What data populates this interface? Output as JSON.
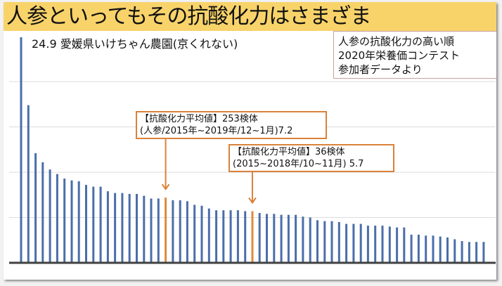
{
  "slide": {
    "title": "人参といってもその抗酸化力はさまざま",
    "top_bar_label": "24.9 愛媛県いけちゃん農園(京くれない)",
    "legend_box": {
      "lines": [
        "人参の抗酸化力の高い順",
        "2020年栄養価コンテスト",
        "参加者データより"
      ]
    },
    "callouts": [
      {
        "lines": [
          "【抗酸化力平均値】253検体",
          "(人参/2015年~2019年/12~1月)7.2"
        ],
        "bar_index": 20
      },
      {
        "lines": [
          "【抗酸化力平均値】36検体",
          "(2015~2018年/10~11月) 5.7"
        ],
        "bar_index": 32
      }
    ]
  },
  "colors": {
    "title_band": "#f8d36a",
    "bar": "#4a6ea9",
    "highlight_bar": "#e08a3e",
    "callout_border": "#d9823b",
    "gridline": "#dcdcdc",
    "axis": "#404040"
  },
  "chart_data": {
    "type": "bar",
    "title": "人参といってもその抗酸化力はさまざま",
    "xlabel": "",
    "ylabel": "",
    "ylim": [
      0,
      25
    ],
    "grid": true,
    "gridlines_at": [
      5,
      10,
      15,
      20
    ],
    "highlighted_indices": [
      20,
      32
    ],
    "values": [
      24.9,
      17.4,
      12.1,
      11.1,
      10.3,
      9.8,
      9.3,
      9.1,
      9.0,
      8.6,
      8.4,
      8.4,
      7.9,
      7.7,
      7.7,
      7.6,
      7.6,
      7.4,
      7.1,
      7.1,
      7.2,
      6.9,
      6.9,
      6.8,
      6.4,
      6.3,
      6.0,
      5.8,
      5.8,
      5.8,
      5.8,
      5.7,
      5.7,
      5.5,
      5.4,
      5.4,
      5.3,
      5.3,
      5.3,
      5.1,
      5.0,
      4.7,
      4.6,
      4.6,
      4.5,
      4.3,
      4.3,
      4.3,
      4.1,
      4.1,
      4.1,
      4.0,
      3.9,
      3.9,
      3.1,
      3.1,
      3.0,
      3.0,
      2.9,
      2.8,
      2.6,
      2.4,
      2.3,
      2.3,
      2.3
    ],
    "annotations": [
      "24.9 愛媛県いけちゃん農園(京くれない)",
      "【抗酸化力平均値】253検体 (人参/2015年~2019年/12~1月)7.2",
      "【抗酸化力平均値】36検体 (2015~2018年/10~11月) 5.7"
    ]
  }
}
